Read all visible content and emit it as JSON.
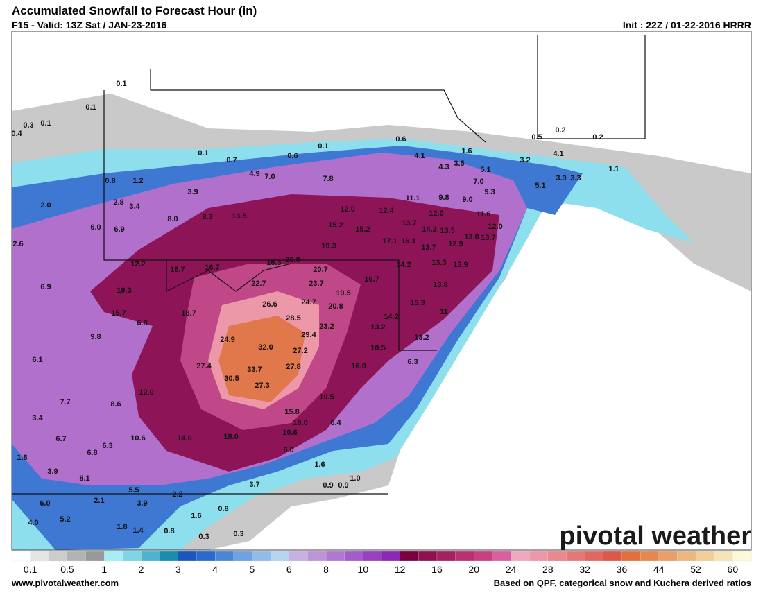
{
  "header": {
    "title": "Accumulated Snowfall to Forecast Hour (in)",
    "valid": "F15 - Valid: 13Z Sat / JAN-23-2016",
    "init": "Init : 22Z / 01-22-2016 HRRR"
  },
  "map_labels": [
    "0.1",
    "0.1",
    "0.3",
    "0.1",
    "0.4",
    "0.1",
    "0.7",
    "0.6",
    "0.1",
    "0.6",
    "4.1",
    "1.6",
    "4.3",
    "3.5",
    "5.1",
    "3.2",
    "0.5",
    "0.2",
    "0.2",
    "4.1",
    "4.9",
    "7.0",
    "7.8",
    "7.0",
    "9.3",
    "5.1",
    "3.9",
    "3.3",
    "1.1",
    "0.8",
    "1.2",
    "3.9",
    "11.1",
    "9.8",
    "9.0",
    "2.0",
    "2.8",
    "3.4",
    "8.0",
    "8.3",
    "13.5",
    "12.0",
    "12.4",
    "12.0",
    "11.6",
    "13.7",
    "15.2",
    "15.2",
    "14.2",
    "13.5",
    "12.0",
    "13.0",
    "13.7",
    "6.0",
    "6.9",
    "19.3",
    "17.1",
    "16.1",
    "12.9",
    "13.7",
    "2.6",
    "20.0",
    "16.3",
    "13.3",
    "13.9",
    "14.2",
    "12.2",
    "16.7",
    "16.7",
    "20.7",
    "22.7",
    "23.7",
    "16.7",
    "13.8",
    "15.3",
    "19.3",
    "6.9",
    "26.6",
    "24.7",
    "19.5",
    "20.8",
    "15.7",
    "6.8",
    "18.7",
    "28.5",
    "23.2",
    "14.2",
    "13.2",
    "11",
    "9.8",
    "24.9",
    "32.0",
    "29.4",
    "27.2",
    "10.5",
    "13.2",
    "6.1",
    "27.4",
    "33.7",
    "27.8",
    "16.0",
    "6.3",
    "30.5",
    "27.3",
    "12.0",
    "19.5",
    "7.7",
    "8.6",
    "3.4",
    "15.8",
    "18.0",
    "6.4",
    "10.6",
    "6.7",
    "10.6",
    "14.0",
    "18.0",
    "6.3",
    "6.8",
    "6.0",
    "1.8",
    "1.6",
    "3.9",
    "8.1",
    "1.0",
    "3.7",
    "0.9",
    "0.9",
    "5.5",
    "2.2",
    "2.1",
    "3.9",
    "6.0",
    "0.8",
    "5.2",
    "1.6",
    "4.0",
    "1.8",
    "1.4",
    "0.8",
    "0.3",
    "0.3"
  ],
  "legend": {
    "colors": [
      "#ffffff",
      "#e5e5e5",
      "#cccccc",
      "#b3b3b3",
      "#999999",
      "#a6edf5",
      "#7dd5e6",
      "#4fb3d0",
      "#1a8cb0",
      "#1c55c0",
      "#2a6ad0",
      "#4a86d8",
      "#6ea2e0",
      "#92bce8",
      "#b8d4ee",
      "#c8b0e0",
      "#bc94d8",
      "#b078d0",
      "#a45cc8",
      "#9840c0",
      "#8c28b4",
      "#7a0040",
      "#901050",
      "#a42060",
      "#b83070",
      "#c84080",
      "#d860a0",
      "#f0a8c0",
      "#ec98a8",
      "#e88890",
      "#e47878",
      "#e06860",
      "#dc5848",
      "#e07040",
      "#e48850",
      "#e8a068",
      "#ecb880",
      "#f0d098",
      "#f4e4b8",
      "#fcf8d8"
    ],
    "labels": [
      "0.1",
      "0.5",
      "1",
      "2",
      "3",
      "4",
      "5",
      "6",
      "8",
      "10",
      "12",
      "16",
      "20",
      "24",
      "28",
      "32",
      "36",
      "44",
      "52",
      "60"
    ]
  },
  "logo": "pivotal weather",
  "footer": {
    "url": "www.pivotalweather.com",
    "note": "Based on QPF, categorical snow and Kuchera derived ratios"
  }
}
